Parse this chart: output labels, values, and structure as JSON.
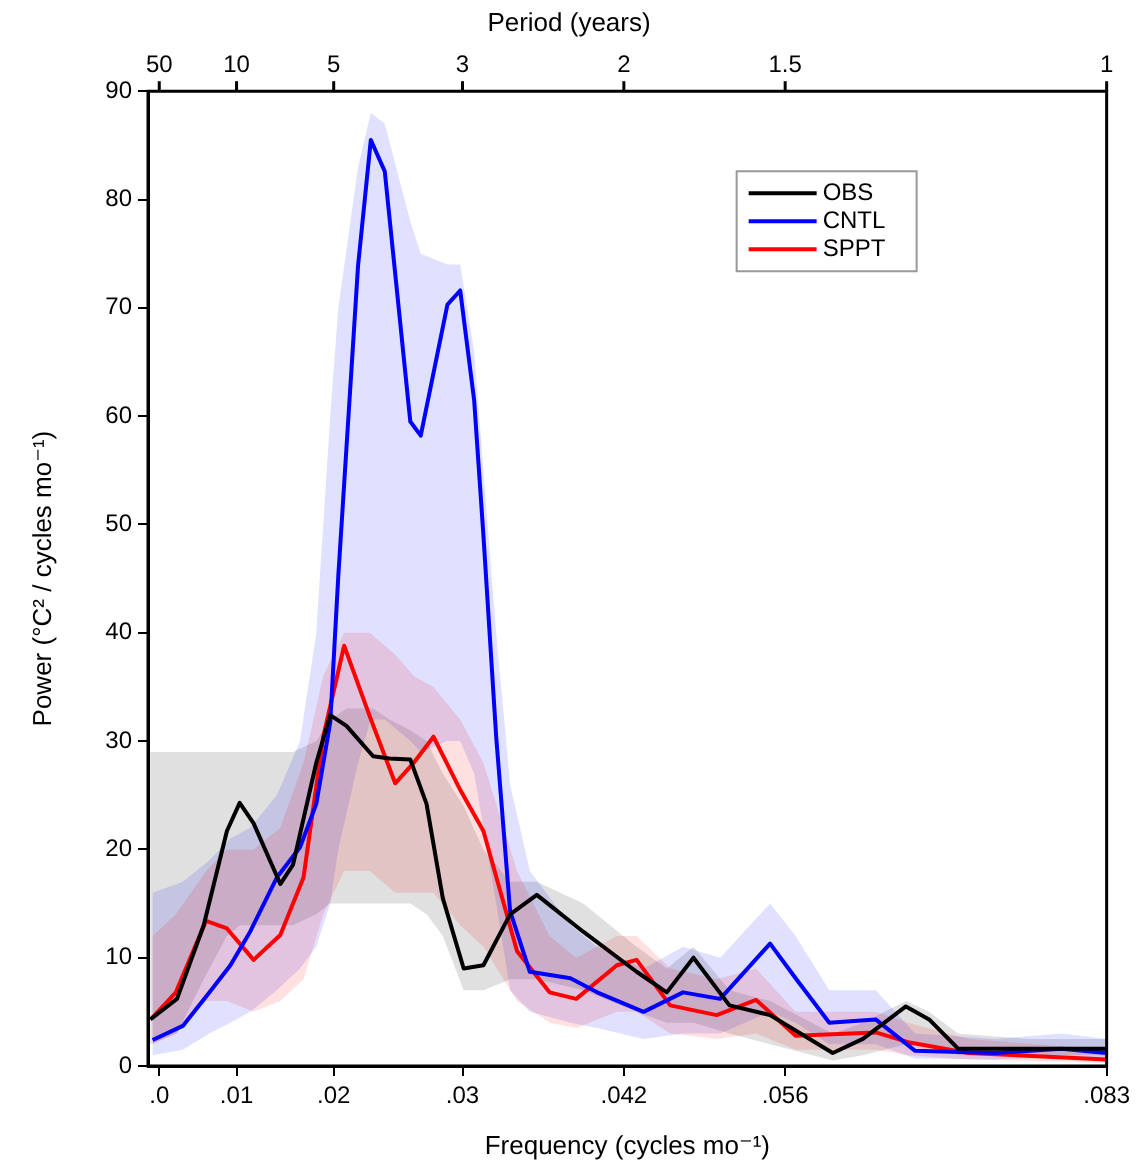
{
  "chart_data": {
    "type": "line",
    "xlabel": "Frequency (cycles mo⁻¹)",
    "ylabel": "Power (°C² / cycles mo⁻¹)",
    "x2label": "Period (years)",
    "xlim": [
      0.0007,
      0.0833
    ],
    "ylim": [
      0,
      90
    ],
    "xticks": [
      {
        "value": 0.00167,
        "label": ".0"
      },
      {
        "value": 0.00833,
        "label": ".01"
      },
      {
        "value": 0.0167,
        "label": ".02"
      },
      {
        "value": 0.0278,
        "label": ".03"
      },
      {
        "value": 0.0417,
        "label": ".042"
      },
      {
        "value": 0.0556,
        "label": ".056"
      },
      {
        "value": 0.0833,
        "label": ".083"
      }
    ],
    "annotations": [
      "50",
      "10",
      "5",
      "3",
      "2",
      "1.5",
      "1"
    ],
    "yticks": [
      0,
      10,
      20,
      30,
      40,
      50,
      60,
      70,
      80,
      90
    ],
    "grid": false,
    "legend": "top right",
    "marker": "none",
    "line_style": "solid",
    "series": [
      {
        "name": "OBS",
        "color": "#000000",
        "x": [
          0.0009,
          0.0032,
          0.0055,
          0.0075,
          0.0086,
          0.0098,
          0.0121,
          0.0132,
          0.0152,
          0.0164,
          0.0178,
          0.0201,
          0.0215,
          0.0233,
          0.0247,
          0.0261,
          0.0279,
          0.0296,
          0.0319,
          0.0342,
          0.0382,
          0.0428,
          0.0454,
          0.0477,
          0.0508,
          0.0543,
          0.0597,
          0.0623,
          0.066,
          0.068,
          0.0705,
          0.0765,
          0.0833
        ],
        "values": [
          4.3,
          6.2,
          13,
          21.7,
          24.3,
          22.4,
          16.8,
          18.6,
          28,
          32.4,
          31.4,
          28.6,
          28.4,
          28.3,
          24.2,
          15.5,
          9,
          9.3,
          14,
          15.8,
          12.4,
          8.7,
          6.8,
          10,
          5.6,
          4.7,
          1.2,
          2.5,
          5.5,
          4.3,
          1.6,
          1.6,
          1.6
        ],
        "lower": [
          2,
          3,
          8,
          12,
          13,
          13,
          13,
          13,
          14,
          15,
          15,
          15,
          15,
          15,
          14,
          12,
          7,
          7,
          8,
          8,
          7,
          5,
          4,
          4,
          3,
          2,
          0.5,
          1,
          2,
          2,
          1,
          1,
          1
        ],
        "upper": [
          29,
          29,
          29,
          29,
          29,
          29,
          29,
          29,
          30,
          32,
          33,
          33,
          32,
          31,
          30,
          27,
          24,
          20,
          17,
          17,
          15,
          11,
          9,
          11,
          7,
          6,
          3,
          4,
          6,
          5,
          3,
          2.5,
          2.5
        ]
      },
      {
        "name": "CNTL",
        "color": "#0000ff",
        "x": [
          0.0011,
          0.0037,
          0.006,
          0.0078,
          0.0095,
          0.0118,
          0.0138,
          0.0152,
          0.0164,
          0.0171,
          0.0188,
          0.0199,
          0.0211,
          0.0233,
          0.0242,
          0.0265,
          0.0276,
          0.0288,
          0.0296,
          0.0307,
          0.0319,
          0.0336,
          0.0371,
          0.0394,
          0.0434,
          0.0468,
          0.05,
          0.0543,
          0.0565,
          0.0594,
          0.0634,
          0.0668,
          0.0737,
          0.0794,
          0.0833
        ],
        "values": [
          2.4,
          3.7,
          6.8,
          9.3,
          12.4,
          17.4,
          20.2,
          24.2,
          31.7,
          45.3,
          73.9,
          85.5,
          82.6,
          59.5,
          58.2,
          70.3,
          71.6,
          61.5,
          49,
          30.4,
          14.3,
          8.7,
          8.1,
          6.8,
          5,
          6.8,
          6.2,
          11.3,
          8.1,
          4,
          4.3,
          1.4,
          1.2,
          1.6,
          1.2
        ],
        "lower": [
          1,
          1.5,
          3,
          4,
          5,
          7,
          9,
          11,
          15,
          20,
          28,
          32,
          32,
          30,
          29,
          30,
          30,
          27,
          22,
          15,
          7,
          5,
          4,
          3.5,
          2.5,
          3,
          3,
          5,
          4,
          2,
          2,
          0.7,
          0.6,
          0.8,
          0.6
        ],
        "upper": [
          16,
          17,
          19,
          21,
          22,
          25,
          30,
          40,
          60,
          70,
          83,
          88,
          87,
          78,
          75,
          74,
          74,
          66,
          55,
          40,
          26,
          18,
          13,
          11,
          9,
          11,
          10,
          15,
          12,
          7,
          7,
          3,
          2.5,
          3,
          2.5
        ]
      },
      {
        "name": "SPPT",
        "color": "#ff0000",
        "x": [
          0.0011,
          0.0031,
          0.0057,
          0.0075,
          0.0098,
          0.0121,
          0.0141,
          0.0158,
          0.0176,
          0.0198,
          0.022,
          0.0236,
          0.0253,
          0.0276,
          0.0296,
          0.0325,
          0.0353,
          0.0376,
          0.0411,
          0.0428,
          0.0457,
          0.0497,
          0.0531,
          0.0565,
          0.0634,
          0.0662,
          0.0714,
          0.0833
        ],
        "values": [
          4.5,
          6.8,
          13.4,
          12.7,
          9.8,
          12.1,
          17.4,
          30.4,
          38.8,
          32.3,
          26.1,
          28,
          30.4,
          25.5,
          21.7,
          10.6,
          6.8,
          6.2,
          9.3,
          9.8,
          5.6,
          4.7,
          6.1,
          2.8,
          3.1,
          2.2,
          1.2,
          0.6
        ],
        "lower": [
          2,
          3,
          6,
          6,
          5,
          6,
          8,
          14,
          18,
          18,
          16,
          16,
          16,
          13,
          11,
          6,
          4,
          3.5,
          5,
          5,
          3,
          2.5,
          3,
          1.5,
          1.5,
          1,
          0.6,
          0.3
        ],
        "upper": [
          12,
          14,
          18,
          20,
          20,
          22,
          28,
          36,
          40,
          40,
          38,
          36,
          35,
          32,
          28,
          18,
          12,
          10,
          12,
          12,
          9,
          8,
          9,
          5,
          5,
          4,
          2.5,
          1.5
        ]
      }
    ]
  }
}
